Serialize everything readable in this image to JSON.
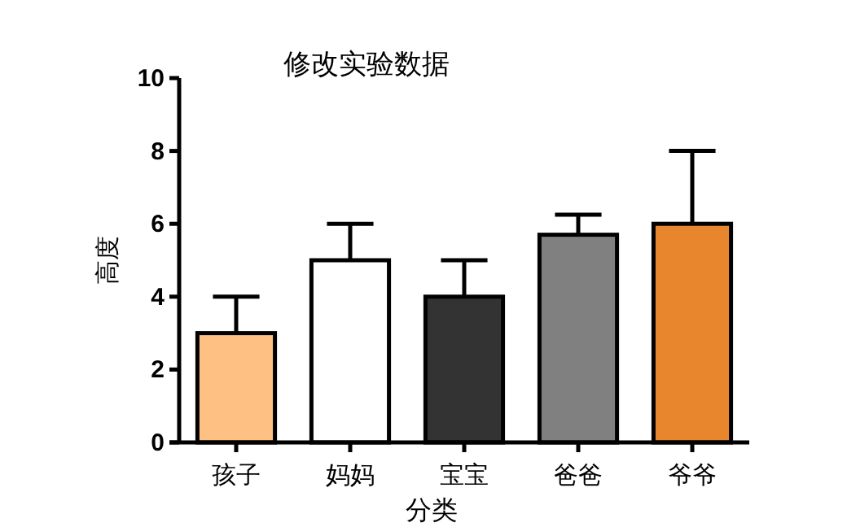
{
  "chart_data": {
    "type": "bar",
    "title": "修改实验数据",
    "xlabel": "分类",
    "ylabel": "高度",
    "categories": [
      "孩子",
      "妈妈",
      "宝宝",
      "爸爸",
      "爷爷"
    ],
    "values": [
      3,
      5,
      4,
      5.7,
      6
    ],
    "errors": [
      1,
      1,
      1,
      0.55,
      2
    ],
    "colors": [
      "#fec183",
      "#ffffff",
      "#333333",
      "#808080",
      "#e8862e"
    ],
    "ylim": [
      0,
      10
    ],
    "yticks": [
      0,
      2,
      4,
      6,
      8,
      10
    ],
    "grid": false
  }
}
